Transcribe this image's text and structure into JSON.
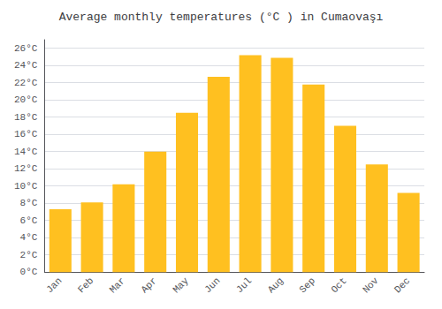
{
  "chart_data": {
    "type": "bar",
    "title": "Average monthly temperatures (°C ) in Cumaovaşı",
    "categories": [
      "Jan",
      "Feb",
      "Mar",
      "Apr",
      "May",
      "Jun",
      "Jul",
      "Aug",
      "Sep",
      "Oct",
      "Nov",
      "Dec"
    ],
    "values": [
      7.3,
      8.1,
      10.2,
      14.0,
      18.5,
      22.7,
      25.2,
      24.9,
      21.8,
      17.0,
      12.5,
      9.2
    ],
    "color": "#FFC020",
    "ylim": [
      0,
      27
    ],
    "yticks": [
      {
        "value": 0,
        "label": "0°C"
      },
      {
        "value": 2,
        "label": "2°C"
      },
      {
        "value": 4,
        "label": "4°C"
      },
      {
        "value": 6,
        "label": "6°C"
      },
      {
        "value": 8,
        "label": "8°C"
      },
      {
        "value": 10,
        "label": "10°C"
      },
      {
        "value": 12,
        "label": "12°C"
      },
      {
        "value": 14,
        "label": "14°C"
      },
      {
        "value": 16,
        "label": "16°C"
      },
      {
        "value": 18,
        "label": "18°C"
      },
      {
        "value": 20,
        "label": "20°C"
      },
      {
        "value": 22,
        "label": "22°C"
      },
      {
        "value": 24,
        "label": "24°C"
      },
      {
        "value": 26,
        "label": "26°C"
      }
    ],
    "grid": true
  }
}
